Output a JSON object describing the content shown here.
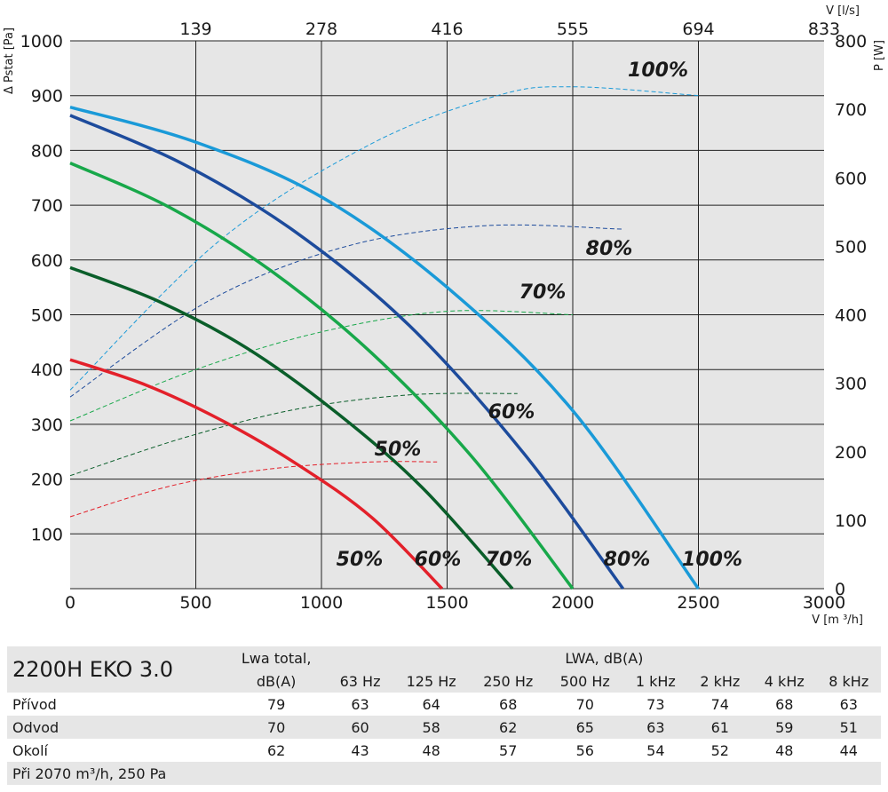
{
  "chart_data": {
    "type": "line",
    "xlabel": "V [m ³/h]",
    "ylabel_left": "Δ Pstat [Pa]",
    "ylabel_right": "P [W]",
    "x2label": "V [l/s]",
    "xlim": [
      0,
      3000
    ],
    "ylim": [
      0,
      1000
    ],
    "y2lim": [
      0,
      800
    ],
    "x_ticks": [
      "0",
      "500",
      "1000",
      "1500",
      "2000",
      "2500",
      "3000"
    ],
    "y_ticks": [
      "100",
      "200",
      "300",
      "400",
      "500",
      "600",
      "700",
      "800",
      "900",
      "1000"
    ],
    "y2_ticks": [
      "0",
      "100",
      "200",
      "300",
      "400",
      "500",
      "600",
      "700",
      "800"
    ],
    "x2_ticks": [
      "139",
      "278",
      "416",
      "555",
      "694",
      "833"
    ],
    "pressure_curves": [
      {
        "name": "50%",
        "color": "#e3202a",
        "x": [
          0,
          300,
          600,
          900,
          1200,
          1480
        ],
        "y": [
          418,
          372,
          308,
          228,
          130,
          0
        ]
      },
      {
        "name": "60%",
        "color": "#0a5e2a",
        "x": [
          0,
          350,
          700,
          1050,
          1400,
          1760
        ],
        "y": [
          586,
          525,
          440,
          325,
          185,
          0
        ]
      },
      {
        "name": "70%",
        "color": "#18a84a",
        "x": [
          0,
          400,
          800,
          1200,
          1600,
          2000
        ],
        "y": [
          777,
          695,
          580,
          430,
          240,
          0
        ]
      },
      {
        "name": "80%",
        "color": "#1d4b9c",
        "x": [
          0,
          450,
          900,
          1350,
          1800,
          2200
        ],
        "y": [
          864,
          775,
          650,
          480,
          250,
          0
        ]
      },
      {
        "name": "100%",
        "color": "#1a9ad8",
        "x": [
          0,
          500,
          1000,
          1500,
          2000,
          2500
        ],
        "y": [
          879,
          815,
          715,
          550,
          325,
          0
        ]
      }
    ],
    "power_curves": [
      {
        "name": "50%",
        "color": "#e3202a",
        "x": [
          0,
          400,
          800,
          1200,
          1460
        ],
        "y": [
          105,
          150,
          175,
          185,
          185
        ]
      },
      {
        "name": "60%",
        "color": "#0a5e2a",
        "x": [
          0,
          450,
          900,
          1350,
          1780
        ],
        "y": [
          165,
          220,
          262,
          283,
          285
        ]
      },
      {
        "name": "70%",
        "color": "#18a84a",
        "x": [
          0,
          500,
          1000,
          1500,
          2000
        ],
        "y": [
          245,
          320,
          375,
          405,
          400
        ]
      },
      {
        "name": "80%",
        "color": "#1d4b9c",
        "x": [
          0,
          550,
          1100,
          1650,
          2200
        ],
        "y": [
          280,
          420,
          500,
          530,
          525
        ]
      },
      {
        "name": "100%",
        "color": "#1a9ad8",
        "x": [
          0,
          600,
          1200,
          1700,
          2000,
          2500
        ],
        "y": [
          290,
          510,
          650,
          720,
          733,
          720
        ]
      }
    ],
    "curve_labels": [
      "50%",
      "60%",
      "70%",
      "80%",
      "100%"
    ],
    "power_labels": [
      "50%",
      "60%",
      "70%",
      "80%",
      "100%"
    ]
  },
  "table": {
    "model": "2200H EKO 3.0",
    "lwa_total_header_1": "Lwa total,",
    "lwa_total_header_2": "dB(A)",
    "lwa_group_header": "LWA, dB(A)",
    "bands": [
      "63 Hz",
      "125 Hz",
      "250 Hz",
      "500 Hz",
      "1 kHz",
      "2 kHz",
      "4 kHz",
      "8 kHz"
    ],
    "rows": [
      {
        "name": "Přívod",
        "total": "79",
        "values": [
          "63",
          "64",
          "68",
          "70",
          "73",
          "74",
          "68",
          "63"
        ]
      },
      {
        "name": "Odvod",
        "total": "70",
        "values": [
          "60",
          "58",
          "62",
          "65",
          "63",
          "61",
          "59",
          "51"
        ]
      },
      {
        "name": "Okolí",
        "total": "62",
        "values": [
          "43",
          "48",
          "57",
          "56",
          "54",
          "52",
          "48",
          "44"
        ]
      }
    ],
    "note": "Při 2070 m³/h, 250 Pa"
  }
}
